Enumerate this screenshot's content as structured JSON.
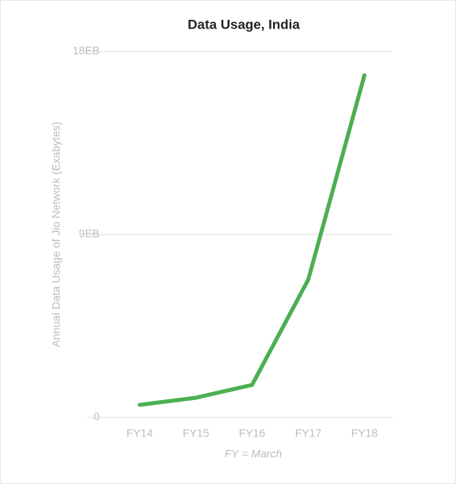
{
  "chart_data": {
    "type": "line",
    "title": "Data Usage, India",
    "y_label": "Annual Data Usage of Jio Network (Exabytes)",
    "x_label": "FY = March",
    "categories": [
      "FY14",
      "FY15",
      "FY16",
      "FY17",
      "FY18"
    ],
    "series": [
      {
        "name": "Data Usage",
        "color": "#4caf50",
        "values": [
          0.62,
          0.97,
          1.6,
          6.78,
          16.83
        ]
      }
    ],
    "ylim": [
      0,
      18
    ],
    "yticks": [
      0,
      {
        "value": 9,
        "label": "9EB"
      },
      {
        "value": 18,
        "label": "18EB"
      }
    ],
    "grid": true
  }
}
